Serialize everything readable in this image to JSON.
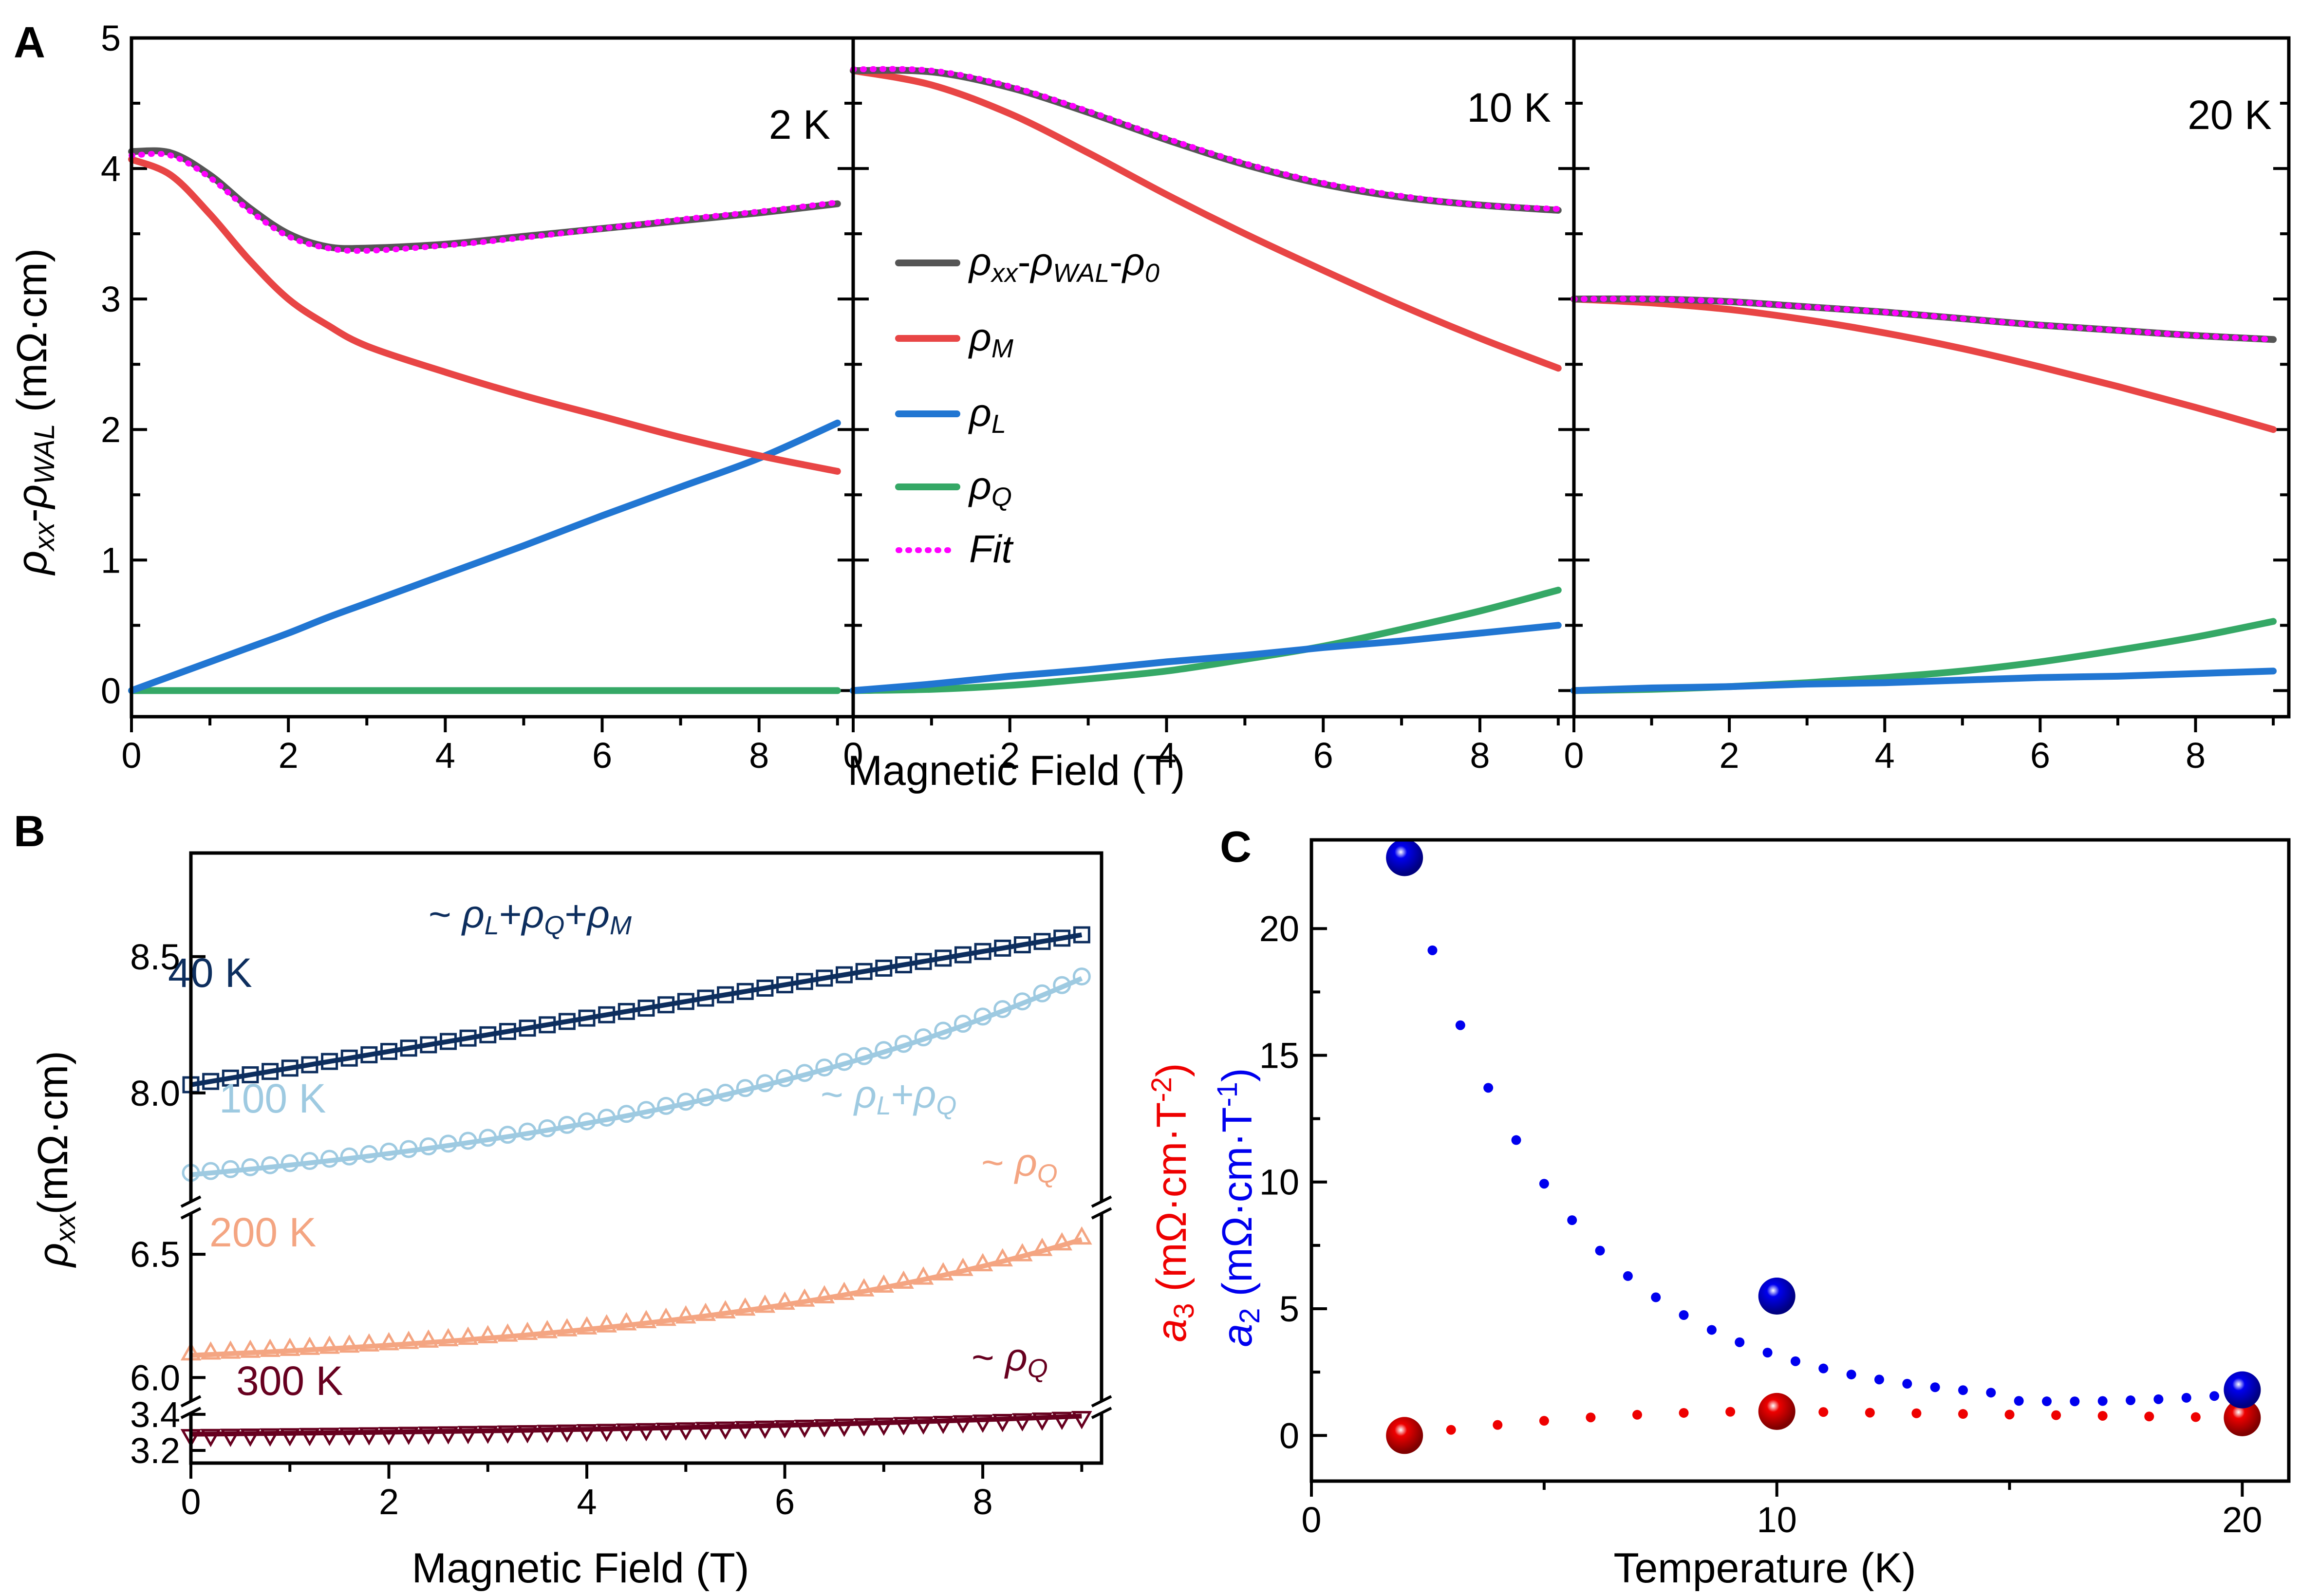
{
  "colors": {
    "data": "#555555",
    "rho_m": "#e84545",
    "rho_l": "#2176d2",
    "rho_q": "#35a866",
    "fit": "#ff00ff",
    "b40": "#0d2e5e",
    "b100": "#9ecae1",
    "b200": "#f4a582",
    "b300": "#67001f",
    "c_a2": "#0000ee",
    "c_a3": "#ee0000"
  },
  "chart_data": [
    {
      "id": "A",
      "type": "line",
      "panel_label": "A",
      "ylabel": "ρxx-ρWAL (mΩ·cm)",
      "xlabel": "Magnetic Field (T)",
      "ylim": [
        -0.2,
        5
      ],
      "y_ticks": [
        "0",
        "1",
        "2",
        "3",
        "4",
        "5"
      ],
      "legend": [
        {
          "key": "data",
          "label": "ρxx-ρWAL-ρ0"
        },
        {
          "key": "rho_m",
          "label": "ρM"
        },
        {
          "key": "rho_l",
          "label": "ρL"
        },
        {
          "key": "rho_q",
          "label": "ρQ"
        },
        {
          "key": "fit",
          "label": "Fit"
        }
      ],
      "subplots": [
        {
          "title": "2 K",
          "xlim": [
            0,
            9.2
          ],
          "x_ticks": [
            "0",
            "2",
            "4",
            "6",
            "8"
          ],
          "x": [
            0,
            0.5,
            1,
            1.5,
            2,
            2.5,
            3,
            4,
            5,
            6,
            7,
            8,
            9
          ],
          "series": {
            "data": [
              4.13,
              4.12,
              3.95,
              3.7,
              3.5,
              3.4,
              3.39,
              3.42,
              3.48,
              3.54,
              3.6,
              3.66,
              3.73
            ],
            "rho_m": [
              4.07,
              3.95,
              3.65,
              3.3,
              3.0,
              2.8,
              2.64,
              2.44,
              2.26,
              2.1,
              1.94,
              1.8,
              1.68
            ],
            "rho_l": [
              0.0,
              0.11,
              0.22,
              0.33,
              0.44,
              0.56,
              0.67,
              0.89,
              1.11,
              1.34,
              1.56,
              1.78,
              2.05
            ],
            "rho_q": [
              0,
              0,
              0,
              0,
              0,
              0,
              0,
              0,
              0,
              0,
              0,
              0,
              0
            ],
            "fit": [
              4.1,
              4.1,
              3.93,
              3.68,
              3.48,
              3.39,
              3.37,
              3.41,
              3.47,
              3.54,
              3.61,
              3.67,
              3.74
            ]
          }
        },
        {
          "title": "10 K",
          "xlim": [
            0,
            9.2
          ],
          "x_ticks": [
            "0",
            "2",
            "4",
            "6",
            "8"
          ],
          "x": [
            0,
            1,
            2,
            3,
            4,
            5,
            6,
            7,
            8,
            9
          ],
          "series": {
            "data": [
              4.75,
              4.74,
              4.62,
              4.43,
              4.22,
              4.03,
              3.88,
              3.78,
              3.72,
              3.68
            ],
            "rho_m": [
              4.75,
              4.64,
              4.42,
              4.12,
              3.8,
              3.5,
              3.22,
              2.95,
              2.7,
              2.47
            ],
            "rho_l": [
              0.0,
              0.05,
              0.11,
              0.16,
              0.22,
              0.27,
              0.33,
              0.38,
              0.44,
              0.5
            ],
            "rho_q": [
              0.0,
              0.01,
              0.04,
              0.09,
              0.15,
              0.24,
              0.34,
              0.47,
              0.61,
              0.77
            ],
            "fit": [
              4.76,
              4.75,
              4.63,
              4.44,
              4.23,
              4.04,
              3.89,
              3.79,
              3.72,
              3.69
            ]
          }
        },
        {
          "title": "20 K",
          "xlim": [
            0,
            9.2
          ],
          "x_ticks": [
            "0",
            "2",
            "4",
            "6",
            "8"
          ],
          "x": [
            0,
            1,
            2,
            3,
            4,
            5,
            6,
            7,
            8,
            9
          ],
          "series": {
            "data": [
              3.0,
              3.0,
              2.98,
              2.94,
              2.9,
              2.85,
              2.8,
              2.76,
              2.72,
              2.69
            ],
            "rho_m": [
              3.0,
              2.97,
              2.92,
              2.84,
              2.74,
              2.62,
              2.48,
              2.33,
              2.17,
              2.0
            ],
            "rho_l": [
              0.0,
              0.02,
              0.03,
              0.05,
              0.06,
              0.08,
              0.1,
              0.11,
              0.13,
              0.15
            ],
            "rho_q": [
              0.0,
              0.01,
              0.03,
              0.06,
              0.1,
              0.15,
              0.22,
              0.31,
              0.41,
              0.53
            ],
            "fit": [
              3.0,
              3.0,
              2.98,
              2.94,
              2.9,
              2.85,
              2.8,
              2.76,
              2.72,
              2.69
            ]
          }
        }
      ]
    },
    {
      "id": "B",
      "type": "scatter",
      "panel_label": "B",
      "ylabel": "ρxx(mΩ·cm)",
      "xlabel": "Magnetic Field (T)",
      "xlim": [
        0,
        9.2
      ],
      "x_ticks": [
        "0",
        "2",
        "4",
        "6",
        "8"
      ],
      "y_ticks": [
        "3.2",
        "3.4",
        "6.0",
        "6.5",
        "8.0",
        "8.5"
      ],
      "series": [
        {
          "name": "40 K",
          "marker": "square",
          "annotation": "~ ρL+ρQ+ρM",
          "x": [
            0,
            9
          ],
          "y_start": 8.03,
          "y_end": 8.58,
          "curve": 0.0
        },
        {
          "name": "100 K",
          "marker": "circle",
          "annotation": "~ ρL+ρQ",
          "x": [
            0,
            9
          ],
          "y_start": 7.7,
          "y_end": 8.42,
          "curve": 1.6
        },
        {
          "name": "200 K",
          "marker": "triangle-up",
          "annotation": "~ ρQ",
          "x": [
            0,
            9
          ],
          "y_start": 6.09,
          "y_end": 6.56,
          "curve": 2.0
        },
        {
          "name": "300 K",
          "marker": "triangle-down",
          "annotation": "~ ρQ",
          "x": [
            0,
            9
          ],
          "y_start": 3.29,
          "y_end": 3.39,
          "curve": 1.5
        }
      ]
    },
    {
      "id": "C",
      "type": "scatter",
      "panel_label": "C",
      "xlabel": "Temperature  (K)",
      "ylabel_a3": "a3 (mΩ·cm·T-2)",
      "ylabel_a2": "a2 (mΩ·cm·T-1)",
      "xlim": [
        0,
        21
      ],
      "ylim": [
        -1.8,
        23.5
      ],
      "x_ticks": [
        "0",
        "10",
        "20"
      ],
      "y_ticks": [
        "0",
        "5",
        "10",
        "15",
        "20"
      ],
      "series": [
        {
          "name": "a2",
          "x": [
            2,
            10,
            20
          ],
          "y": [
            22.8,
            5.5,
            1.8
          ]
        },
        {
          "name": "a3",
          "x": [
            2,
            10,
            20
          ],
          "y": [
            0.0,
            0.95,
            0.7
          ]
        }
      ]
    }
  ]
}
